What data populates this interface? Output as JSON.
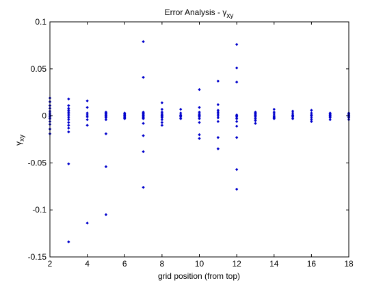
{
  "chart_data": {
    "type": "scatter",
    "title": "Error Analysis - γ",
    "title_sub": "xy",
    "xlabel": "grid position (from top)",
    "ylabel": "γ",
    "ylabel_sub": "xy",
    "xlim": [
      2,
      18
    ],
    "ylim": [
      -0.15,
      0.1
    ],
    "xticks": [
      2,
      4,
      6,
      8,
      10,
      12,
      14,
      16,
      18
    ],
    "yticks": [
      -0.15,
      -0.1,
      -0.05,
      0,
      0.05,
      0.1
    ],
    "ytick_labels": [
      "-0.15",
      "-0.1",
      "-0.05",
      "0",
      "0.05",
      "0.1"
    ],
    "grid": false,
    "marker_color": "#0000cc",
    "points": [
      [
        2,
        0.019
      ],
      [
        2,
        0.015
      ],
      [
        2,
        0.011
      ],
      [
        2,
        0.008
      ],
      [
        2,
        0.005
      ],
      [
        2,
        0.003
      ],
      [
        2,
        0.001
      ],
      [
        2,
        -0.001
      ],
      [
        2,
        -0.003
      ],
      [
        2,
        -0.006
      ],
      [
        2,
        -0.009
      ],
      [
        2,
        -0.014
      ],
      [
        2,
        -0.019
      ],
      [
        3,
        0.018
      ],
      [
        3,
        0.011
      ],
      [
        3,
        0.008
      ],
      [
        3,
        0.006
      ],
      [
        3,
        0.004
      ],
      [
        3,
        0.002
      ],
      [
        3,
        0.0
      ],
      [
        3,
        -0.002
      ],
      [
        3,
        -0.004
      ],
      [
        3,
        -0.007
      ],
      [
        3,
        -0.01
      ],
      [
        3,
        -0.013
      ],
      [
        3,
        -0.017
      ],
      [
        3,
        -0.051
      ],
      [
        3,
        -0.134
      ],
      [
        4,
        0.016
      ],
      [
        4,
        0.009
      ],
      [
        4,
        0.003
      ],
      [
        4,
        0.001
      ],
      [
        4,
        -0.001
      ],
      [
        4,
        -0.004
      ],
      [
        4,
        -0.01
      ],
      [
        4,
        -0.114
      ],
      [
        5,
        0.004
      ],
      [
        5,
        0.003
      ],
      [
        5,
        0.002
      ],
      [
        5,
        0.001
      ],
      [
        5,
        0.0
      ],
      [
        5,
        -0.001
      ],
      [
        5,
        -0.002
      ],
      [
        5,
        -0.004
      ],
      [
        5,
        -0.019
      ],
      [
        5,
        -0.054
      ],
      [
        5,
        -0.105
      ],
      [
        6,
        0.003
      ],
      [
        6,
        0.002
      ],
      [
        6,
        0.001
      ],
      [
        6,
        0.0
      ],
      [
        6,
        -0.001
      ],
      [
        6,
        -0.002
      ],
      [
        6,
        -0.003
      ],
      [
        7,
        0.079
      ],
      [
        7,
        0.041
      ],
      [
        7,
        0.004
      ],
      [
        7,
        0.003
      ],
      [
        7,
        0.002
      ],
      [
        7,
        0.001
      ],
      [
        7,
        0.0
      ],
      [
        7,
        -0.001
      ],
      [
        7,
        -0.002
      ],
      [
        7,
        -0.003
      ],
      [
        7,
        -0.008
      ],
      [
        7,
        -0.021
      ],
      [
        7,
        -0.038
      ],
      [
        7,
        -0.076
      ],
      [
        8,
        0.014
      ],
      [
        8,
        0.007
      ],
      [
        8,
        0.004
      ],
      [
        8,
        0.002
      ],
      [
        8,
        0.001
      ],
      [
        8,
        0.0
      ],
      [
        8,
        -0.001
      ],
      [
        8,
        -0.002
      ],
      [
        8,
        -0.004
      ],
      [
        8,
        -0.007
      ],
      [
        8,
        -0.01
      ],
      [
        9,
        0.007
      ],
      [
        9,
        0.003
      ],
      [
        9,
        0.001
      ],
      [
        9,
        0.0
      ],
      [
        9,
        -0.001
      ],
      [
        9,
        -0.003
      ],
      [
        10,
        0.028
      ],
      [
        10,
        0.009
      ],
      [
        10,
        0.004
      ],
      [
        10,
        0.002
      ],
      [
        10,
        0.001
      ],
      [
        10,
        0.0
      ],
      [
        10,
        -0.001
      ],
      [
        10,
        -0.003
      ],
      [
        10,
        -0.007
      ],
      [
        10,
        -0.02
      ],
      [
        10,
        -0.024
      ],
      [
        11,
        0.037
      ],
      [
        11,
        0.012
      ],
      [
        11,
        0.006
      ],
      [
        11,
        0.004
      ],
      [
        11,
        0.002
      ],
      [
        11,
        0.0
      ],
      [
        11,
        -0.002
      ],
      [
        11,
        -0.006
      ],
      [
        11,
        -0.023
      ],
      [
        11,
        -0.035
      ],
      [
        12,
        0.076
      ],
      [
        12,
        0.051
      ],
      [
        12,
        0.036
      ],
      [
        12,
        0.001
      ],
      [
        12,
        0.0
      ],
      [
        12,
        -0.001
      ],
      [
        12,
        -0.003
      ],
      [
        12,
        -0.006
      ],
      [
        12,
        -0.011
      ],
      [
        12,
        -0.023
      ],
      [
        12,
        -0.057
      ],
      [
        12,
        -0.078
      ],
      [
        13,
        0.004
      ],
      [
        13,
        0.003
      ],
      [
        13,
        0.002
      ],
      [
        13,
        0.001
      ],
      [
        13,
        0.0
      ],
      [
        13,
        -0.001
      ],
      [
        13,
        -0.003
      ],
      [
        13,
        -0.005
      ],
      [
        13,
        -0.008
      ],
      [
        14,
        0.007
      ],
      [
        14,
        0.004
      ],
      [
        14,
        0.002
      ],
      [
        14,
        0.0
      ],
      [
        14,
        -0.001
      ],
      [
        14,
        -0.002
      ],
      [
        14,
        -0.003
      ],
      [
        15,
        0.005
      ],
      [
        15,
        0.003
      ],
      [
        15,
        0.001
      ],
      [
        15,
        0.0
      ],
      [
        15,
        -0.001
      ],
      [
        15,
        -0.003
      ],
      [
        16,
        0.006
      ],
      [
        16,
        0.003
      ],
      [
        16,
        0.001
      ],
      [
        16,
        0.0
      ],
      [
        16,
        -0.002
      ],
      [
        16,
        -0.004
      ],
      [
        16,
        -0.006
      ],
      [
        17,
        0.003
      ],
      [
        17,
        0.002
      ],
      [
        17,
        0.001
      ],
      [
        17,
        0.0
      ],
      [
        17,
        -0.001
      ],
      [
        17,
        -0.002
      ],
      [
        17,
        -0.004
      ],
      [
        18,
        0.003
      ],
      [
        18,
        0.002
      ],
      [
        18,
        0.001
      ],
      [
        18,
        0.0
      ],
      [
        18,
        -0.001
      ],
      [
        18,
        -0.002
      ],
      [
        18,
        -0.004
      ]
    ]
  }
}
